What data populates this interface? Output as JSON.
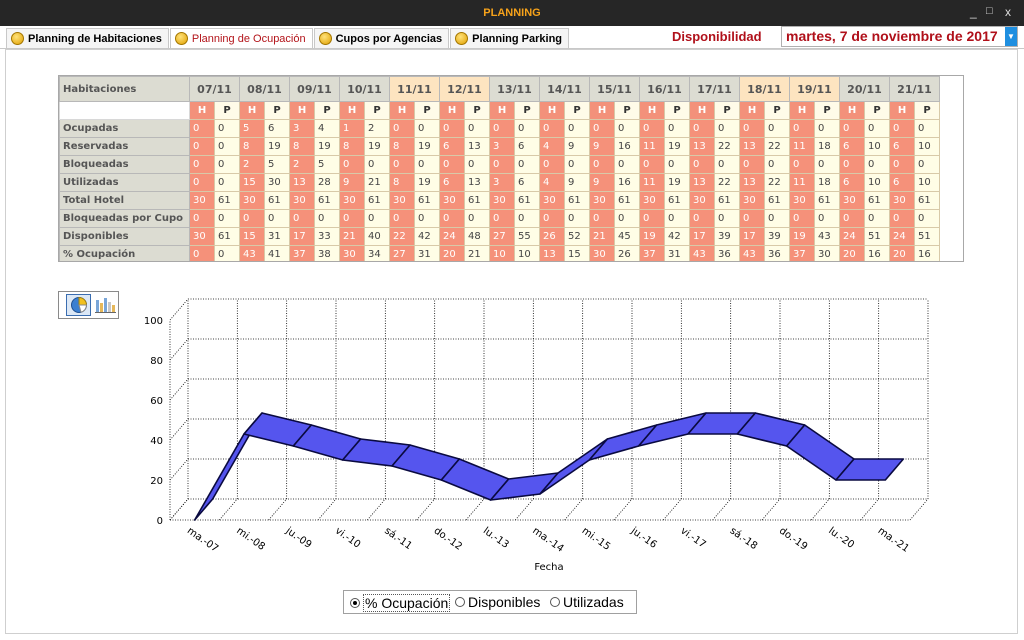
{
  "window": {
    "title": "PLANNING",
    "controls": [
      "_",
      "□",
      "x"
    ]
  },
  "tabs": [
    {
      "label": "Planning de Habitaciones",
      "icon": "habitaciones-icon"
    },
    {
      "label": "Planning de Ocupación",
      "icon": "ocupacion-icon",
      "active": true
    },
    {
      "label": "Cupos por Agencias",
      "icon": "cupos-icon"
    },
    {
      "label": "Planning Parking",
      "icon": "parking-icon"
    }
  ],
  "header": {
    "disponibilidad_label": "Disponibilidad",
    "date": "martes, 7 de noviembre de 2017",
    "dropdown_glyph": "▼"
  },
  "table": {
    "corner": "Habitaciones",
    "dates": [
      "07/11",
      "08/11",
      "09/11",
      "10/11",
      "11/11",
      "12/11",
      "13/11",
      "14/11",
      "15/11",
      "16/11",
      "17/11",
      "18/11",
      "19/11",
      "20/11",
      "21/11"
    ],
    "highlighted_dates": [
      "11/11",
      "12/11",
      "18/11",
      "19/11"
    ],
    "subheaders": [
      "H",
      "P"
    ],
    "rows": [
      {
        "label": "Ocupadas",
        "values": [
          0,
          0,
          5,
          6,
          3,
          4,
          1,
          2,
          0,
          0,
          0,
          0,
          0,
          0,
          0,
          0,
          0,
          0,
          0,
          0,
          0,
          0,
          0,
          0,
          0,
          0,
          0,
          0,
          0,
          0
        ]
      },
      {
        "label": "Reservadas",
        "values": [
          0,
          0,
          8,
          19,
          8,
          19,
          8,
          19,
          8,
          19,
          6,
          13,
          3,
          6,
          4,
          9,
          9,
          16,
          11,
          19,
          13,
          22,
          13,
          22,
          11,
          18,
          6,
          10,
          6,
          10
        ]
      },
      {
        "label": "Bloqueadas",
        "values": [
          0,
          0,
          2,
          5,
          2,
          5,
          0,
          0,
          0,
          0,
          0,
          0,
          0,
          0,
          0,
          0,
          0,
          0,
          0,
          0,
          0,
          0,
          0,
          0,
          0,
          0,
          0,
          0,
          0,
          0
        ]
      },
      {
        "label": "Utilizadas",
        "values": [
          0,
          0,
          15,
          30,
          13,
          28,
          9,
          21,
          8,
          19,
          6,
          13,
          3,
          6,
          4,
          9,
          9,
          16,
          11,
          19,
          13,
          22,
          13,
          22,
          11,
          18,
          6,
          10,
          6,
          10
        ]
      },
      {
        "label": "Total Hotel",
        "values": [
          30,
          61,
          30,
          61,
          30,
          61,
          30,
          61,
          30,
          61,
          30,
          61,
          30,
          61,
          30,
          61,
          30,
          61,
          30,
          61,
          30,
          61,
          30,
          61,
          30,
          61,
          30,
          61,
          30,
          61
        ]
      },
      {
        "label": "Bloqueadas por Cupo",
        "values": [
          0,
          0,
          0,
          0,
          0,
          0,
          0,
          0,
          0,
          0,
          0,
          0,
          0,
          0,
          0,
          0,
          0,
          0,
          0,
          0,
          0,
          0,
          0,
          0,
          0,
          0,
          0,
          0,
          0,
          0
        ]
      },
      {
        "label": "Disponibles",
        "values": [
          30,
          61,
          15,
          31,
          17,
          33,
          21,
          40,
          22,
          42,
          24,
          48,
          27,
          55,
          26,
          52,
          21,
          45,
          19,
          42,
          17,
          39,
          17,
          39,
          19,
          43,
          24,
          51,
          24,
          51
        ]
      },
      {
        "label": "% Ocupación",
        "values": [
          0,
          0,
          43,
          41,
          37,
          38,
          30,
          34,
          27,
          31,
          20,
          21,
          10,
          10,
          13,
          15,
          30,
          26,
          37,
          31,
          43,
          36,
          43,
          36,
          37,
          30,
          20,
          16,
          20,
          16
        ]
      }
    ]
  },
  "chart_buttons": [
    {
      "name": "pie-chart-button",
      "icon": "pie-chart-icon",
      "selected": true
    },
    {
      "name": "bar-chart-button",
      "icon": "bar-chart-icon"
    }
  ],
  "chart_data": {
    "type": "area",
    "style": "3d-ribbon",
    "categories": [
      "ma.-07",
      "mi.-08",
      "ju.-09",
      "vi.-10",
      "sá.-11",
      "do.-12",
      "lu.-13",
      "ma.-14",
      "mi.-15",
      "ju.-16",
      "vi.-17",
      "sá.-18",
      "do.-19",
      "lu.-20",
      "ma.-21"
    ],
    "series": [
      {
        "values": [
          0,
          43,
          37,
          30,
          27,
          20,
          10,
          13,
          30,
          37,
          43,
          43,
          37,
          20,
          20
        ]
      }
    ],
    "xlabel": "Fecha",
    "ylabel": "",
    "ylim": [
      0,
      100
    ],
    "yticks": [
      0,
      20,
      40,
      60,
      80,
      100
    ],
    "grid": true,
    "color": "#5555ee"
  },
  "radio": {
    "options": [
      "% Ocupación",
      "Disponibles",
      "Utilizadas"
    ],
    "selected": 0
  }
}
